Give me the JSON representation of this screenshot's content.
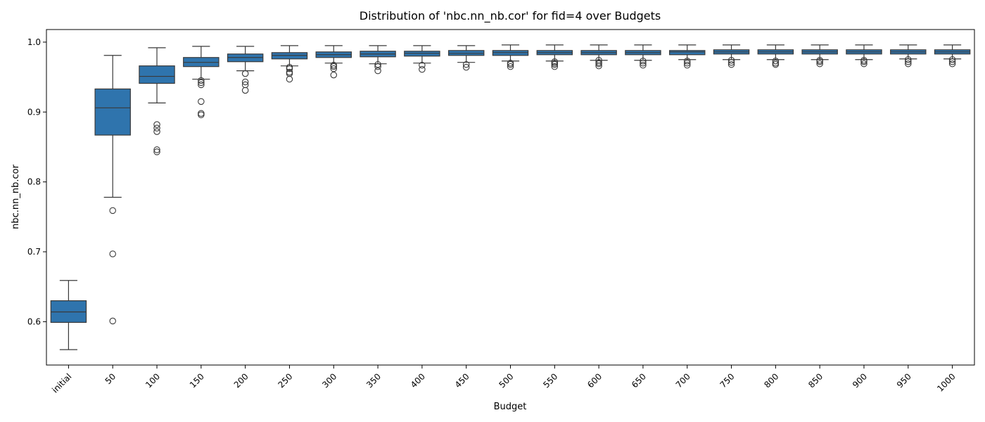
{
  "chart_data": {
    "type": "box",
    "title": "Distribution of 'nbc.nn_nb.cor' for fid=4 over Budgets",
    "xlabel": "Budget",
    "ylabel": "nbc.nn_nb.cor",
    "ylim": [
      0.538,
      1.018
    ],
    "yticks": [
      "0.6",
      "0.7",
      "0.8",
      "0.9",
      "1.0"
    ],
    "yticks_values": [
      0.6,
      0.7,
      0.8,
      0.9,
      1.0
    ],
    "grid": false,
    "legend": "none",
    "box_color": "#2f74ad",
    "line_color": "#3a3a3a",
    "categories": [
      "initial",
      "50",
      "100",
      "150",
      "200",
      "250",
      "300",
      "350",
      "400",
      "450",
      "500",
      "550",
      "600",
      "650",
      "700",
      "750",
      "800",
      "850",
      "900",
      "950",
      "1000"
    ],
    "boxes": [
      {
        "whislo": 0.56,
        "q1": 0.599,
        "med": 0.614,
        "q3": 0.63,
        "whishi": 0.659,
        "fliers": []
      },
      {
        "whislo": 0.778,
        "q1": 0.867,
        "med": 0.906,
        "q3": 0.933,
        "whishi": 0.981,
        "fliers": [
          0.759,
          0.697,
          0.601
        ]
      },
      {
        "whislo": 0.913,
        "q1": 0.941,
        "med": 0.951,
        "q3": 0.966,
        "whishi": 0.992,
        "fliers": [
          0.882,
          0.877,
          0.872,
          0.846,
          0.843
        ]
      },
      {
        "whislo": 0.947,
        "q1": 0.965,
        "med": 0.971,
        "q3": 0.978,
        "whishi": 0.994,
        "fliers": [
          0.945,
          0.942,
          0.939,
          0.915,
          0.898,
          0.896
        ]
      },
      {
        "whislo": 0.959,
        "q1": 0.972,
        "med": 0.978,
        "q3": 0.983,
        "whishi": 0.994,
        "fliers": [
          0.955,
          0.943,
          0.939,
          0.931
        ]
      },
      {
        "whislo": 0.966,
        "q1": 0.976,
        "med": 0.981,
        "q3": 0.985,
        "whishi": 0.995,
        "fliers": [
          0.964,
          0.962,
          0.957,
          0.955,
          0.947
        ]
      },
      {
        "whislo": 0.97,
        "q1": 0.978,
        "med": 0.982,
        "q3": 0.986,
        "whishi": 0.995,
        "fliers": [
          0.967,
          0.965,
          0.962,
          0.953
        ]
      },
      {
        "whislo": 0.969,
        "q1": 0.979,
        "med": 0.983,
        "q3": 0.987,
        "whishi": 0.995,
        "fliers": [
          0.968,
          0.965,
          0.959
        ]
      },
      {
        "whislo": 0.97,
        "q1": 0.98,
        "med": 0.984,
        "q3": 0.987,
        "whishi": 0.995,
        "fliers": [
          0.967,
          0.961
        ]
      },
      {
        "whislo": 0.971,
        "q1": 0.981,
        "med": 0.984,
        "q3": 0.988,
        "whishi": 0.995,
        "fliers": [
          0.968,
          0.964
        ]
      },
      {
        "whislo": 0.973,
        "q1": 0.981,
        "med": 0.985,
        "q3": 0.988,
        "whishi": 0.996,
        "fliers": [
          0.97,
          0.968,
          0.965
        ]
      },
      {
        "whislo": 0.973,
        "q1": 0.982,
        "med": 0.985,
        "q3": 0.988,
        "whishi": 0.996,
        "fliers": [
          0.972,
          0.97,
          0.968,
          0.965
        ]
      },
      {
        "whislo": 0.974,
        "q1": 0.982,
        "med": 0.985,
        "q3": 0.988,
        "whishi": 0.996,
        "fliers": [
          0.974,
          0.971,
          0.969,
          0.966
        ]
      },
      {
        "whislo": 0.974,
        "q1": 0.982,
        "med": 0.985,
        "q3": 0.988,
        "whishi": 0.996,
        "fliers": [
          0.973,
          0.97,
          0.967
        ]
      },
      {
        "whislo": 0.975,
        "q1": 0.982,
        "med": 0.986,
        "q3": 0.988,
        "whishi": 0.996,
        "fliers": [
          0.973,
          0.97,
          0.967
        ]
      },
      {
        "whislo": 0.975,
        "q1": 0.983,
        "med": 0.986,
        "q3": 0.989,
        "whishi": 0.996,
        "fliers": [
          0.974,
          0.971,
          0.968
        ]
      },
      {
        "whislo": 0.975,
        "q1": 0.983,
        "med": 0.986,
        "q3": 0.989,
        "whishi": 0.996,
        "fliers": [
          0.973,
          0.97,
          0.968
        ]
      },
      {
        "whislo": 0.975,
        "q1": 0.983,
        "med": 0.986,
        "q3": 0.989,
        "whishi": 0.996,
        "fliers": [
          0.974,
          0.972,
          0.969
        ]
      },
      {
        "whislo": 0.975,
        "q1": 0.983,
        "med": 0.986,
        "q3": 0.989,
        "whishi": 0.996,
        "fliers": [
          0.974,
          0.972,
          0.969
        ]
      },
      {
        "whislo": 0.976,
        "q1": 0.983,
        "med": 0.986,
        "q3": 0.989,
        "whishi": 0.996,
        "fliers": [
          0.975,
          0.972,
          0.969
        ]
      },
      {
        "whislo": 0.976,
        "q1": 0.983,
        "med": 0.986,
        "q3": 0.989,
        "whishi": 0.996,
        "fliers": [
          0.975,
          0.972,
          0.969
        ]
      }
    ]
  }
}
